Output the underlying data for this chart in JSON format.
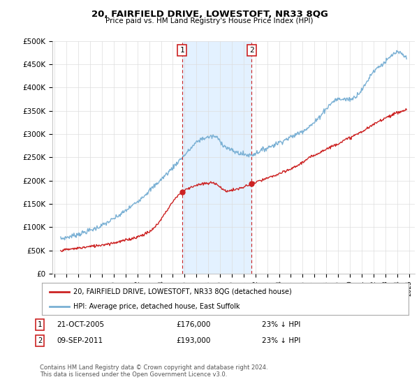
{
  "title": "20, FAIRFIELD DRIVE, LOWESTOFT, NR33 8QG",
  "subtitle": "Price paid vs. HM Land Registry's House Price Index (HPI)",
  "ylabel_ticks": [
    "£0",
    "£50K",
    "£100K",
    "£150K",
    "£200K",
    "£250K",
    "£300K",
    "£350K",
    "£400K",
    "£450K",
    "£500K"
  ],
  "ytick_values": [
    0,
    50000,
    100000,
    150000,
    200000,
    250000,
    300000,
    350000,
    400000,
    450000,
    500000
  ],
  "ylim": [
    0,
    500000
  ],
  "xlim_start": 1994.8,
  "xlim_end": 2025.5,
  "hpi_color": "#7ab0d4",
  "price_color": "#cc2222",
  "vline_color": "#cc2222",
  "shade_color": "#ddeeff",
  "marker1_x": 2005.8,
  "marker1_y": 176000,
  "marker2_x": 2011.67,
  "marker2_y": 193000,
  "legend_house": "20, FAIRFIELD DRIVE, LOWESTOFT, NR33 8QG (detached house)",
  "legend_hpi": "HPI: Average price, detached house, East Suffolk",
  "annotation1": [
    "1",
    "21-OCT-2005",
    "£176,000",
    "23% ↓ HPI"
  ],
  "annotation2": [
    "2",
    "09-SEP-2011",
    "£193,000",
    "23% ↓ HPI"
  ],
  "footnote": "Contains HM Land Registry data © Crown copyright and database right 2024.\nThis data is licensed under the Open Government Licence v3.0.",
  "background_color": "#ffffff",
  "grid_color": "#dddddd",
  "hpi_anchors_x": [
    1995.5,
    1997,
    1998.5,
    2000,
    2001.5,
    2003,
    2004.5,
    2006,
    2007.5,
    2008.5,
    2009.5,
    2010.5,
    2011.5,
    2012.5,
    2014,
    2015.5,
    2017,
    2018,
    2019,
    2020,
    2021,
    2022,
    2023,
    2024,
    2024.5
  ],
  "hpi_anchors_y": [
    75000,
    85000,
    98000,
    118000,
    145000,
    178000,
    215000,
    255000,
    290000,
    295000,
    272000,
    260000,
    255000,
    265000,
    282000,
    300000,
    325000,
    355000,
    375000,
    375000,
    395000,
    435000,
    455000,
    475000,
    470000
  ],
  "price_anchors_x": [
    1995.5,
    1997,
    1999,
    2001,
    2003,
    2005.8,
    2007,
    2008.5,
    2009.5,
    2010.5,
    2011.67,
    2013,
    2015,
    2017,
    2019,
    2021,
    2023,
    2024.5
  ],
  "price_anchors_y": [
    50000,
    55000,
    62000,
    72000,
    90000,
    176000,
    190000,
    195000,
    178000,
    182000,
    193000,
    205000,
    225000,
    255000,
    280000,
    305000,
    335000,
    350000
  ]
}
